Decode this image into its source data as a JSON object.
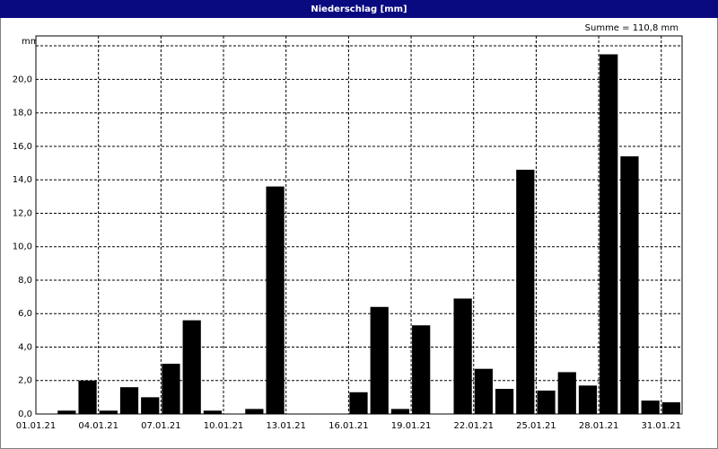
{
  "chart_data": {
    "type": "bar",
    "title": "Niederschlag [mm]",
    "annotation": "Summe = 110,8 mm",
    "y_label": "mm",
    "categories": [
      "01.01.21",
      null,
      null,
      "04.01.21",
      null,
      null,
      "07.01.21",
      null,
      null,
      "10.01.21",
      null,
      null,
      "13.01.21",
      null,
      null,
      "16.01.21",
      null,
      null,
      "19.01.21",
      null,
      null,
      "22.01.21",
      null,
      null,
      "25.01.21",
      null,
      null,
      "28.01.21",
      null,
      null,
      "31.01.21"
    ],
    "values": [
      0,
      0.2,
      2.0,
      0.2,
      1.6,
      1.0,
      3.0,
      5.6,
      0.2,
      0,
      0.3,
      13.6,
      0,
      0,
      0,
      1.3,
      6.4,
      0.3,
      5.3,
      0,
      6.9,
      2.7,
      1.5,
      14.6,
      1.4,
      2.5,
      1.7,
      21.5,
      15.4,
      0.8,
      0.7
    ],
    "color": "#000000",
    "ylim": [
      0,
      22.6
    ],
    "yticks": [
      {
        "value": 0,
        "label": "0,0"
      },
      {
        "value": 2,
        "label": "2,0"
      },
      {
        "value": 4,
        "label": "4,0"
      },
      {
        "value": 6,
        "label": "6,0"
      },
      {
        "value": 8,
        "label": "8,0"
      },
      {
        "value": 10,
        "label": "10,0"
      },
      {
        "value": 12,
        "label": "12,0"
      },
      {
        "value": 14,
        "label": "14,0"
      },
      {
        "value": 16,
        "label": "16,0"
      },
      {
        "value": 18,
        "label": "18,0"
      },
      {
        "value": 20,
        "label": "20,0"
      }
    ],
    "grid": true
  }
}
